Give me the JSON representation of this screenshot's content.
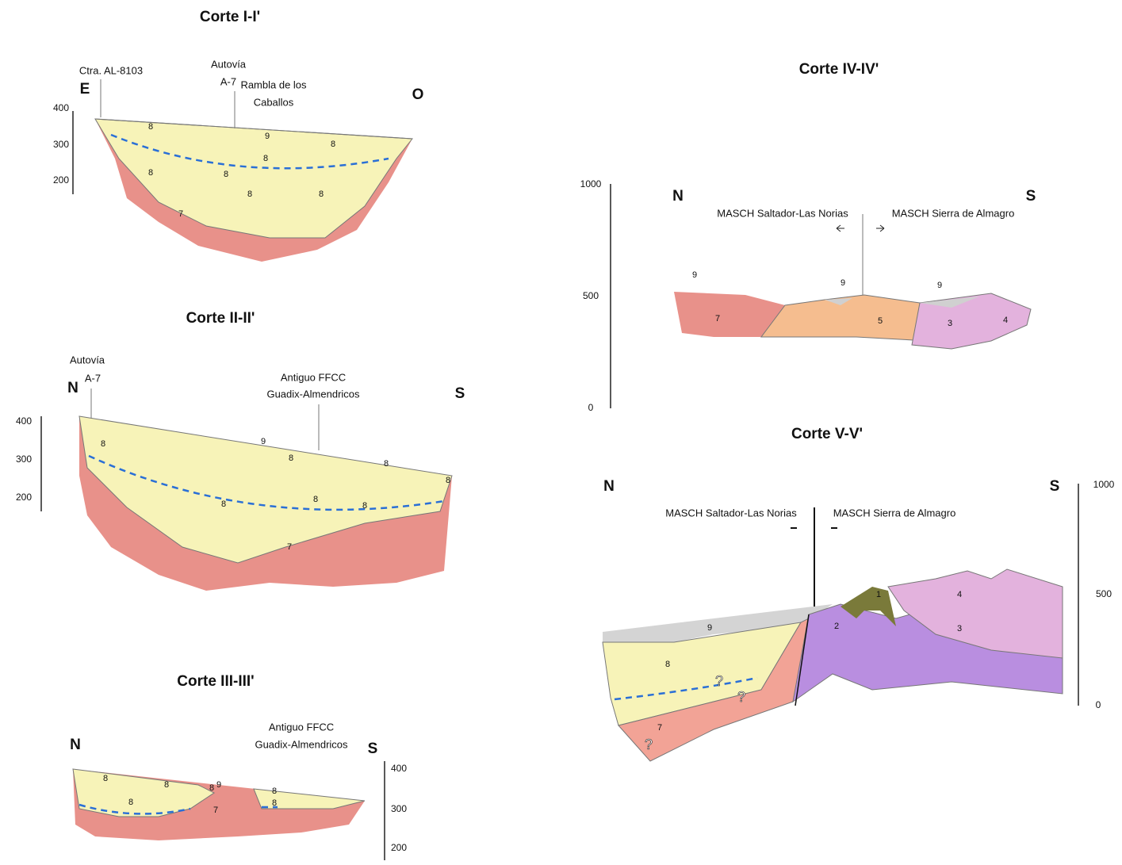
{
  "sections": [
    {
      "title": "Corte I-I'",
      "directions": [
        "E",
        "O"
      ],
      "labels": [
        "Ctra. AL-8103",
        "Autovía",
        "A-7",
        "Rambla de los",
        "Caballos"
      ],
      "scale": [
        "400",
        "300",
        "200"
      ],
      "units": [
        "8",
        "8",
        "8",
        "8",
        "8",
        "8",
        "8",
        "9",
        "7"
      ]
    },
    {
      "title": "Corte II-II'",
      "directions": [
        "N",
        "S"
      ],
      "labels": [
        "Autovía",
        "A-7",
        "Antiguo FFCC",
        "Guadix-Almendricos"
      ],
      "scale": [
        "400",
        "300",
        "200"
      ],
      "units": [
        "9",
        "8",
        "8",
        "8",
        "8",
        "8",
        "8",
        "8",
        "7"
      ]
    },
    {
      "title": "Corte III-III'",
      "directions": [
        "N",
        "S"
      ],
      "labels": [
        "Antiguo FFCC",
        "Guadix-Almendricos"
      ],
      "scale": [
        "400",
        "300",
        "200"
      ],
      "units": [
        "8",
        "8",
        "8",
        "8",
        "8",
        "8",
        "9",
        "7"
      ]
    },
    {
      "title": "Corte IV-IV'",
      "directions": [
        "N",
        "S"
      ],
      "labels": [
        "MASCH Saltador-Las Norias",
        "MASCH Sierra de Almagro"
      ],
      "scale": [
        "1000",
        "500",
        "0"
      ],
      "units": [
        "9",
        "9",
        "9",
        "7",
        "5",
        "3",
        "4"
      ]
    },
    {
      "title": "Corte V-V'",
      "directions": [
        "N",
        "S"
      ],
      "labels": [
        "MASCH Saltador-Las Norias",
        "MASCH Sierra de Almagro"
      ],
      "scale": [
        "1000",
        "500",
        "0"
      ],
      "units": [
        "9",
        "8",
        "7",
        "2",
        "1",
        "3",
        "4",
        "?",
        "?",
        "?"
      ]
    }
  ]
}
